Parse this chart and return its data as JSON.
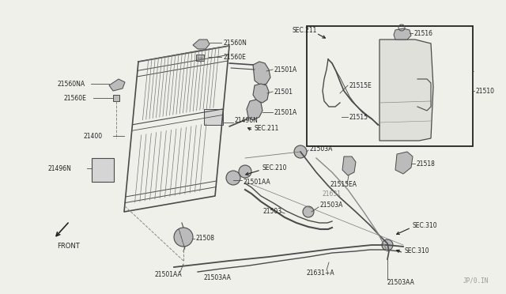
{
  "bg_color": "#f0f0eb",
  "line_color": "#4a4a4a",
  "dark_color": "#222222",
  "gray_color": "#888888",
  "light_gray": "#bbbbbb",
  "watermark": "JP/0.IN",
  "fig_w": 6.4,
  "fig_h": 3.72,
  "dpi": 100,
  "xlim": [
    0,
    640
  ],
  "ylim": [
    0,
    372
  ]
}
